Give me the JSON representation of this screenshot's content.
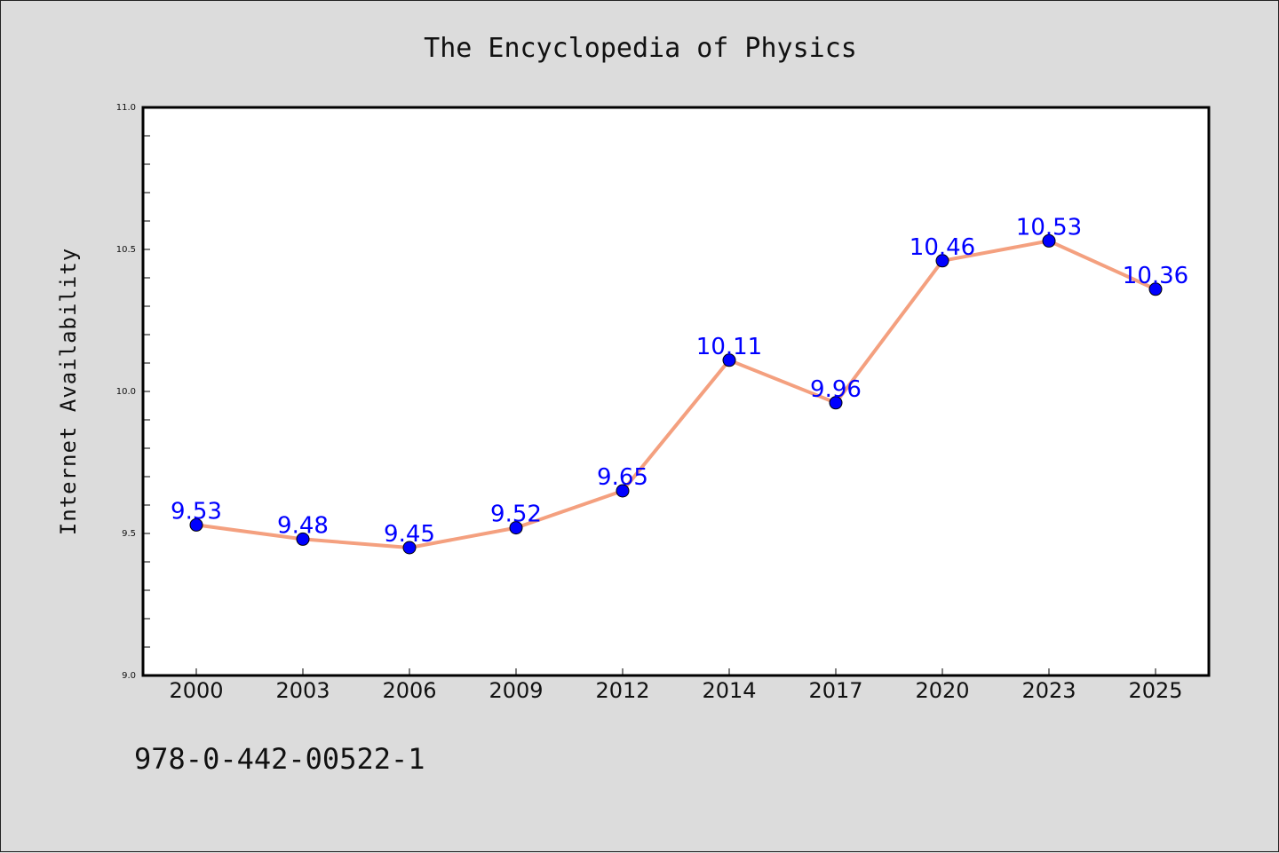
{
  "chart_data": {
    "type": "line",
    "title": "The Encyclopedia of Physics",
    "xlabel": "",
    "ylabel": "Internet Availability",
    "categories": [
      "2000",
      "2003",
      "2006",
      "2009",
      "2012",
      "2014",
      "2017",
      "2020",
      "2023",
      "2025"
    ],
    "series": [
      {
        "values": [
          9.53,
          9.48,
          9.45,
          9.52,
          9.65,
          10.11,
          9.96,
          10.46,
          10.53,
          10.36
        ],
        "data_labels": [
          "9.53",
          "9.48",
          "9.45",
          "9.52",
          "9.65",
          "10.11",
          "9.96",
          "10.46",
          "10.53",
          "10.36"
        ],
        "line_color": "#f4a07f",
        "marker_color": "#0000ff"
      }
    ],
    "ylim": [
      9.0,
      11.0
    ],
    "yticks": [
      "9.0",
      "9.5",
      "10.0",
      "10.5",
      "11.0"
    ],
    "grid": false,
    "label_color": "#0000ff"
  },
  "footer_text": "978-0-442-00522-1",
  "colors": {
    "background": "#dcdcdc",
    "plot_background": "#ffffff"
  }
}
